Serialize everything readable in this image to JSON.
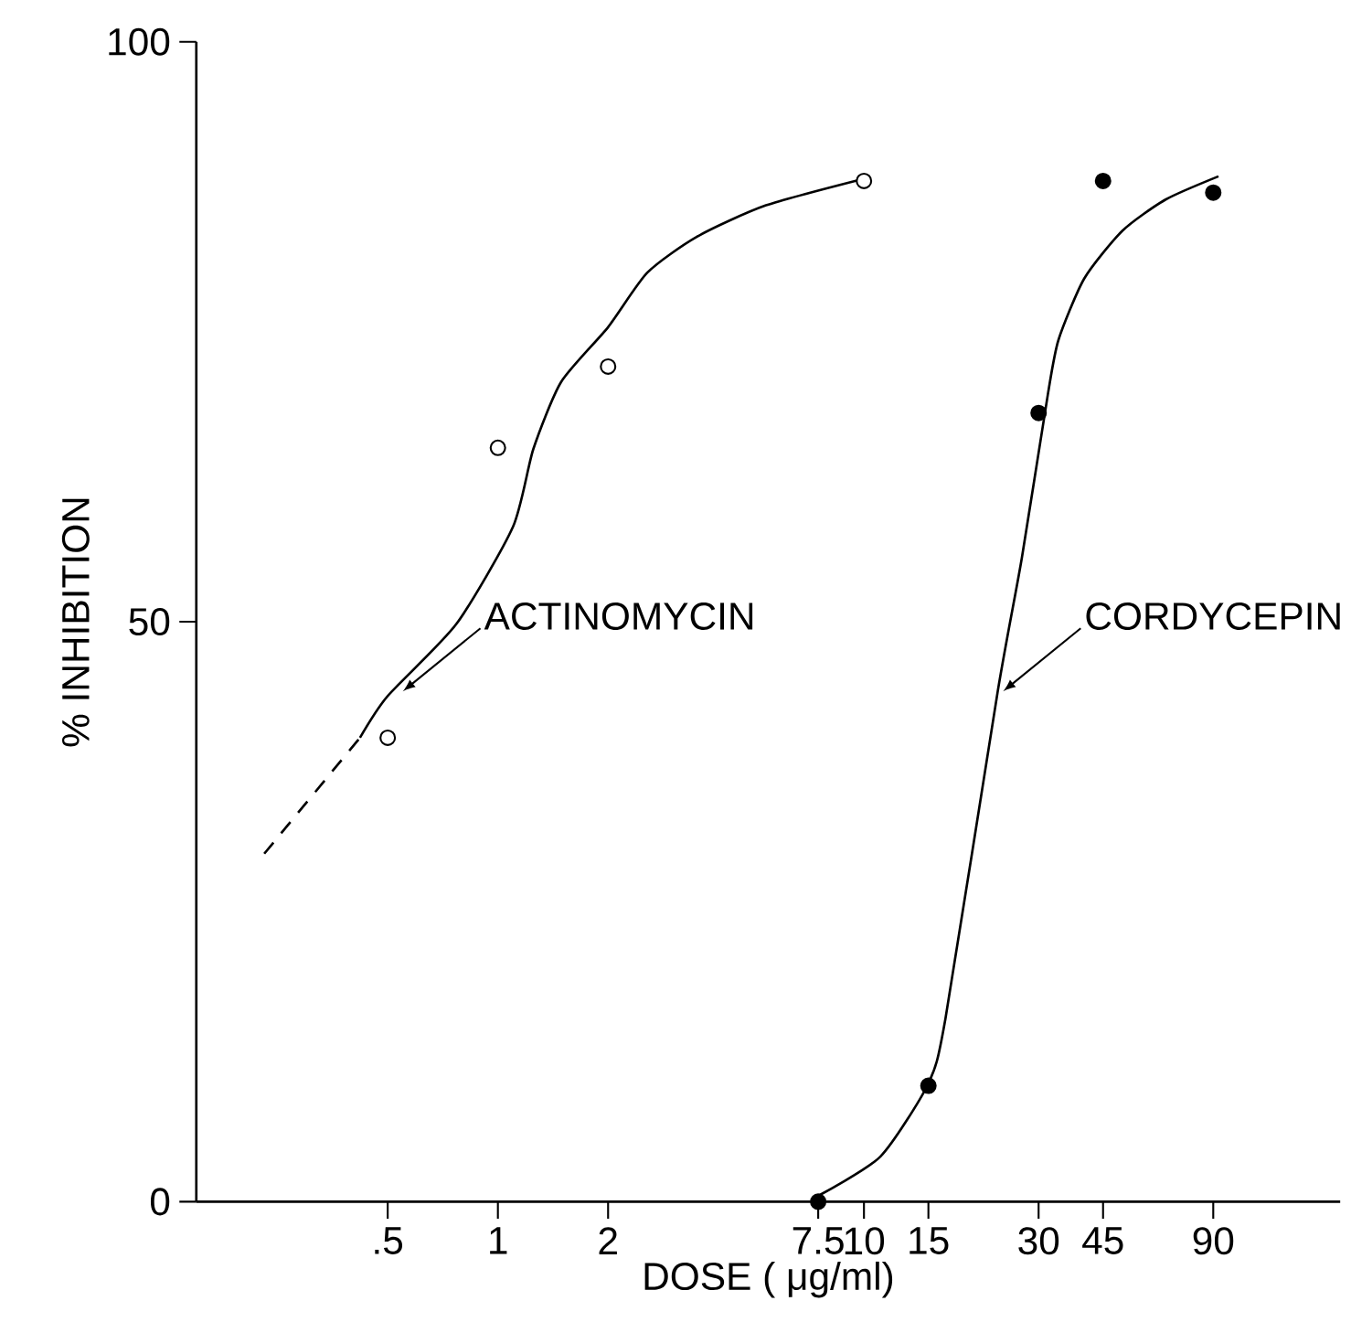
{
  "chart_data": {
    "type": "line",
    "xlabel": "DOSE ( μg/ml)",
    "ylabel": "% INHIBITION",
    "log": "x",
    "xlim": [
      0.15,
      200
    ],
    "ylim": [
      0,
      100
    ],
    "xticks": [
      {
        "value": 0.5,
        "label": ".5"
      },
      1,
      2,
      7.5,
      10,
      15,
      30,
      45,
      90
    ],
    "yticks": [
      0,
      50,
      100
    ],
    "series": [
      {
        "marker": "none",
        "line_style": "dashed",
        "color": "#000000",
        "x": [
          0.23,
          0.42
        ],
        "values": [
          30,
          40
        ]
      },
      {
        "marker": "none",
        "line_style": "solid",
        "color": "#000000",
        "x": [
          0.42,
          0.5,
          0.77,
          1.1,
          1.25,
          1.49,
          2,
          2.56,
          3.5,
          5.4,
          10
        ],
        "values": [
          40,
          43.6,
          49.8,
          58.2,
          64.9,
          70.7,
          75.4,
          80.1,
          83.2,
          85.9,
          88.2
        ]
      },
      {
        "type": "scatter",
        "marker": "circle",
        "color": "#ffffff",
        "x": [
          0.5,
          1,
          2,
          10
        ],
        "values": [
          40,
          65,
          72,
          88
        ]
      },
      {
        "marker": "none",
        "line_style": "solid",
        "color": "#000000",
        "x": [
          7.5,
          11.1,
          15,
          16.7,
          23.2,
          27,
          31.8,
          34,
          40,
          50.8,
          66.7,
          93
        ],
        "values": [
          0.5,
          3.9,
          10.2,
          15.8,
          44,
          55.5,
          69.6,
          74.3,
          79.6,
          83.7,
          86.4,
          88.4
        ]
      },
      {
        "type": "scatter",
        "marker": "circle",
        "color": "#000000",
        "x": [
          7.5,
          15,
          30,
          45,
          90
        ],
        "values": [
          0,
          10,
          68,
          88,
          87
        ]
      }
    ],
    "annotations": [
      {
        "text": "ACTINOMYCIN",
        "x": 0.55,
        "y": 44
      },
      {
        "text": "CORDYCEPIN",
        "x": 24,
        "y": 44
      }
    ]
  }
}
